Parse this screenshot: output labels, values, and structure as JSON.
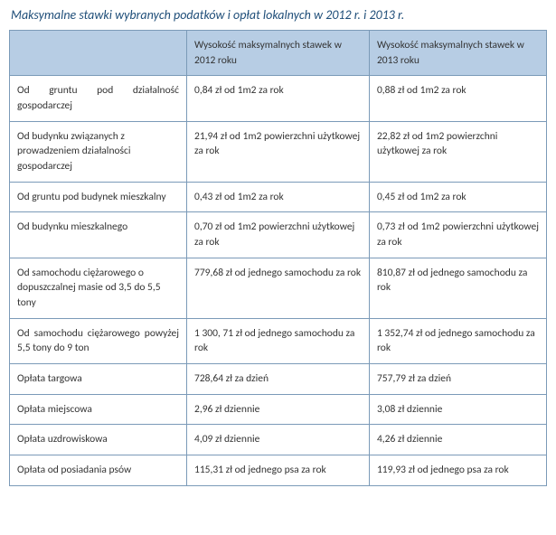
{
  "title": "Maksymalne stawki wybranych podatków i opłat lokalnych w 2012 r. i 2013 r.",
  "table": {
    "colors": {
      "header_bg": "#b7cde4",
      "border": "#7b9ab8",
      "title_color": "#1f4e79",
      "text_color": "#333333",
      "background": "#ffffff"
    },
    "fontsize": {
      "title": 14,
      "cell": 11.5
    },
    "columns": [
      "",
      "Wysokość maksymalnych stawek w 2012 roku",
      "Wysokość maksymalnych stawek w 2013 roku"
    ],
    "rows": [
      {
        "label": "Od gruntu pod działalność gospodarczej",
        "v2012": "0,84 zł od 1m2 za rok",
        "v2013": "0,88 zł od 1m2 za rok",
        "label_justify": true
      },
      {
        "label": "Od budynku związanych z prowadzeniem działalności gospodarczej",
        "v2012": "21,94 zł od 1m2 powierzchni użytkowej za rok",
        "v2013": "22,82 zł od 1m2 powierzchni użytkowej za rok"
      },
      {
        "label": "Od gruntu pod budynek mieszkalny",
        "v2012": "0,43 zł od 1m2 za rok",
        "v2013": "0,45 zł od 1m2 za rok"
      },
      {
        "label": "Od budynku mieszkalnego",
        "v2012": "0,70 zł od 1m2 powierzchni użytkowej za rok",
        "v2013": "0,73 zł od 1m2 powierzchni użytkowej za rok",
        "v2013_justify": true
      },
      {
        "label": "Od samochodu ciężarowego o dopuszczalnej masie od 3,5  do 5,5 tony",
        "v2012": "779,68 zł od jednego samochodu za rok",
        "v2013": "810,87 zł od jednego samochodu za rok"
      },
      {
        "label": "Od samochodu ciężarowego powyżej 5,5 tony do 9 ton",
        "v2012": "1 300, 71 zł od jednego samochodu za rok",
        "v2013": "1 352,74 zł od jednego samochodu za rok",
        "label_justify": true
      },
      {
        "label": "Opłata targowa",
        "v2012": "728,64 zł za dzień",
        "v2013": "757,79 zł za dzień"
      },
      {
        "label": "Opłata miejscowa",
        "v2012": "2,96 zł dziennie",
        "v2013": "3,08 zł dziennie"
      },
      {
        "label": "Opłata uzdrowiskowa",
        "v2012": "4,09 zł dziennie",
        "v2013": "4,26 zł dziennie"
      },
      {
        "label": "Opłata od posiadania psów",
        "v2012": "115,31 zł od jednego psa za rok",
        "v2013": "119,93 zł od jednego psa za rok"
      }
    ]
  }
}
